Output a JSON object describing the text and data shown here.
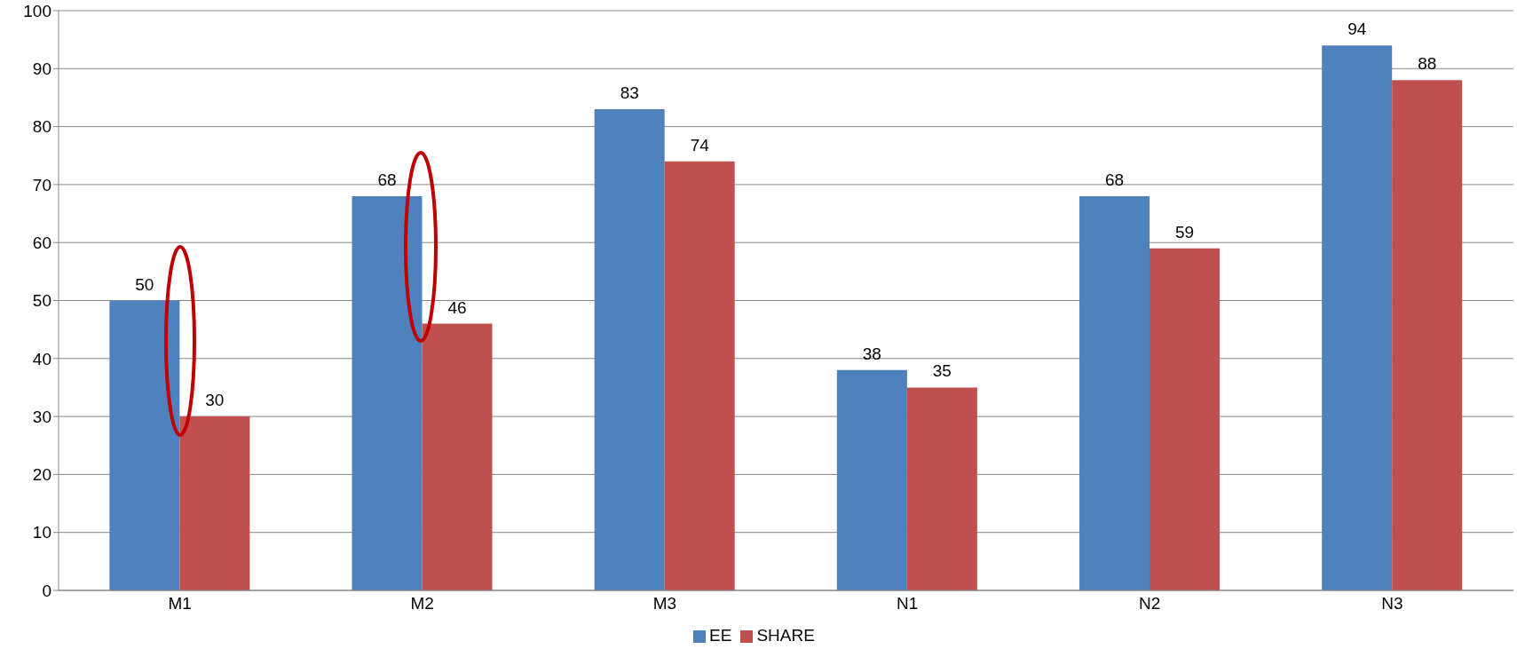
{
  "chart_data": {
    "type": "bar",
    "categories": [
      "M1",
      "M2",
      "M3",
      "N1",
      "N2",
      "N3"
    ],
    "series": [
      {
        "name": "EE",
        "color": "#4f81bd",
        "values": [
          50,
          68,
          83,
          38,
          68,
          94
        ]
      },
      {
        "name": "SHARE",
        "color": "#c0504d",
        "values": [
          30,
          46,
          74,
          35,
          59,
          88
        ]
      }
    ],
    "ylim": [
      0,
      100
    ],
    "yticks": [
      0,
      10,
      20,
      30,
      40,
      50,
      60,
      70,
      80,
      90,
      100
    ],
    "grid": "y",
    "legend": "bottom",
    "data_labels": true
  }
}
